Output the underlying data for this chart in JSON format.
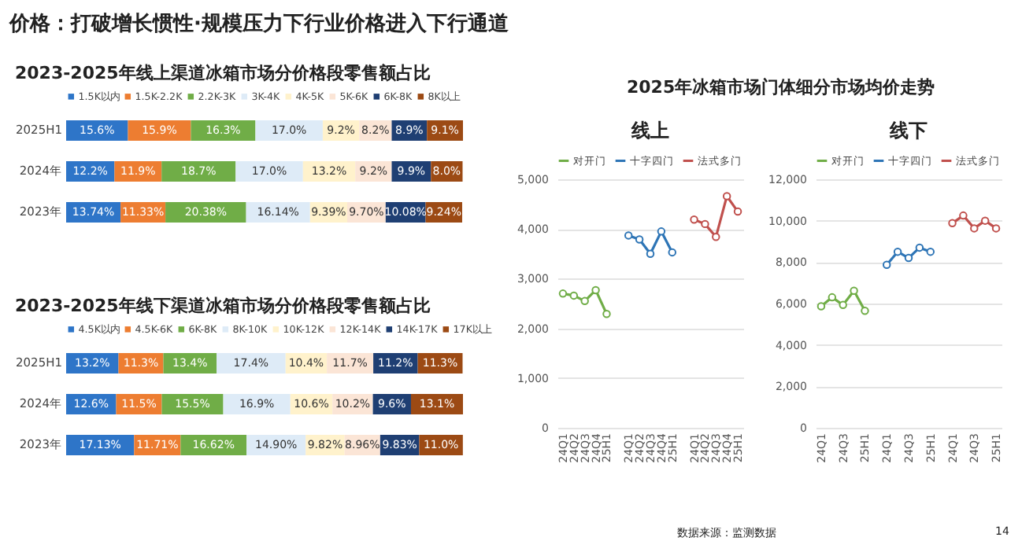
{
  "chart_data": [
    {
      "type": "bar",
      "orientation": "horizontal",
      "stacked": true,
      "title": "2023-2025年线上渠道冰箱市场分价格段零售额占比",
      "annotations": [
        "价格：打破增长惯性·规模压力下行业价格进入下行通道"
      ],
      "legend": "top",
      "categories": [
        "2025H1",
        "2024年",
        "2023年"
      ],
      "series": [
        {
          "name": "1.5K以内",
          "color": "#2e75c8",
          "values": [
            15.6,
            12.2,
            13.74
          ],
          "value_labels": [
            "15.6%",
            "12.2%",
            "13.74%"
          ]
        },
        {
          "name": "1.5K-2.2K",
          "color": "#ed7d31",
          "values": [
            15.9,
            11.9,
            11.33
          ],
          "value_labels": [
            "15.9%",
            "11.9%",
            "11.33%"
          ]
        },
        {
          "name": "2.2K-3K",
          "color": "#70ad47",
          "values": [
            16.3,
            18.7,
            20.38
          ],
          "value_labels": [
            "16.3%",
            "18.7%",
            "20.38%"
          ]
        },
        {
          "name": "3K-4K",
          "color": "#deebf7",
          "values": [
            17.0,
            17.0,
            16.14
          ],
          "value_labels": [
            "17.0%",
            "17.0%",
            "16.14%"
          ]
        },
        {
          "name": "4K-5K",
          "color": "#fff2cc",
          "values": [
            9.2,
            13.2,
            9.39
          ],
          "value_labels": [
            "9.2%",
            "13.2%",
            "9.39%"
          ]
        },
        {
          "name": "5K-6K",
          "color": "#fbe5d6",
          "values": [
            8.2,
            9.2,
            9.7
          ],
          "value_labels": [
            "8.2%",
            "9.2%",
            "9.70%"
          ]
        },
        {
          "name": "6K-8K",
          "color": "#1f3f73",
          "values": [
            8.9,
            9.9,
            10.08
          ],
          "value_labels": [
            "8.9%",
            "9.9%",
            "10.08%"
          ]
        },
        {
          "name": "8K以上",
          "color": "#9c4a14",
          "values": [
            9.1,
            8.0,
            9.24
          ],
          "value_labels": [
            "9.1%",
            "8.0%",
            "9.24%"
          ]
        }
      ]
    },
    {
      "type": "bar",
      "orientation": "horizontal",
      "stacked": true,
      "title": "2023-2025年线下渠道冰箱市场分价格段零售额占比",
      "legend": "top",
      "categories": [
        "2025H1",
        "2024年",
        "2023年"
      ],
      "series": [
        {
          "name": "4.5K以内",
          "color": "#2e75c8",
          "values": [
            13.2,
            12.6,
            17.13
          ],
          "value_labels": [
            "13.2%",
            "12.6%",
            "17.13%"
          ]
        },
        {
          "name": "4.5K-6K",
          "color": "#ed7d31",
          "values": [
            11.3,
            11.5,
            11.71
          ],
          "value_labels": [
            "11.3%",
            "11.5%",
            "11.71%"
          ]
        },
        {
          "name": "6K-8K",
          "color": "#70ad47",
          "values": [
            13.4,
            15.5,
            16.62
          ],
          "value_labels": [
            "13.4%",
            "15.5%",
            "16.62%"
          ]
        },
        {
          "name": "8K-10K",
          "color": "#deebf7",
          "values": [
            17.4,
            16.9,
            14.9
          ],
          "value_labels": [
            "17.4%",
            "16.9%",
            "14.90%"
          ]
        },
        {
          "name": "10K-12K",
          "color": "#fff2cc",
          "values": [
            10.4,
            10.6,
            9.82
          ],
          "value_labels": [
            "10.4%",
            "10.6%",
            "9.82%"
          ]
        },
        {
          "name": "12K-14K",
          "color": "#fbe5d6",
          "values": [
            11.7,
            10.2,
            8.96
          ],
          "value_labels": [
            "11.7%",
            "10.2%",
            "8.96%"
          ]
        },
        {
          "name": "14K-17K",
          "color": "#1f3f73",
          "values": [
            11.2,
            9.6,
            9.83
          ],
          "value_labels": [
            "11.2%",
            "9.6%",
            "9.83%"
          ]
        },
        {
          "name": "17K以上",
          "color": "#9c4a14",
          "values": [
            11.3,
            13.1,
            11.0
          ],
          "value_labels": [
            "11.3%",
            "13.1%",
            "11.0%"
          ]
        }
      ]
    },
    {
      "type": "line",
      "title": "线上",
      "annotations": [
        "2025年冰箱市场门体细分市场均价走势"
      ],
      "legend": "top left",
      "grid": "y",
      "marker": "circle",
      "line_style": "solid",
      "ylim": [
        0,
        5000
      ],
      "yticks": [
        {
          "value": 0,
          "label": "0"
        },
        {
          "value": 1000,
          "label": "1,000"
        },
        {
          "value": 2000,
          "label": "2,000"
        },
        {
          "value": 3000,
          "label": "3,000"
        },
        {
          "value": 4000,
          "label": "4,000"
        },
        {
          "value": 5000,
          "label": "5,000"
        }
      ],
      "categories": [
        "24Q1",
        "24Q2",
        "24Q3",
        "24Q4",
        "25H1",
        null,
        "24Q1",
        "24Q2",
        "24Q3",
        "24Q4",
        "25H1",
        null,
        "24Q1",
        "24Q2",
        "24Q3",
        "24Q4",
        "25H1"
      ],
      "series": [
        {
          "name": "对开门",
          "color": "#70ad47",
          "values": [
            2700,
            2660,
            2550,
            2770,
            2290,
            null,
            null,
            null,
            null,
            null,
            null,
            null,
            null,
            null,
            null,
            null,
            null
          ]
        },
        {
          "name": "十字四门",
          "color": "#2e75b6",
          "values": [
            null,
            null,
            null,
            null,
            null,
            null,
            3870,
            3790,
            3500,
            3950,
            3530,
            null,
            null,
            null,
            null,
            null,
            null
          ]
        },
        {
          "name": "法式多门",
          "color": "#c0504d",
          "values": [
            null,
            null,
            null,
            null,
            null,
            null,
            null,
            null,
            null,
            null,
            null,
            null,
            4190,
            4100,
            3840,
            4660,
            4350
          ]
        }
      ]
    },
    {
      "type": "line",
      "title": "线下",
      "annotations": [
        "数据来源：监测数据",
        "14"
      ],
      "legend": "top left",
      "grid": "y",
      "marker": "circle",
      "line_style": "solid",
      "ylim": [
        0,
        12000
      ],
      "yticks": [
        {
          "value": 0,
          "label": "0"
        },
        {
          "value": 2000,
          "label": "2,000"
        },
        {
          "value": 4000,
          "label": "4,000"
        },
        {
          "value": 6000,
          "label": "6,000"
        },
        {
          "value": 8000,
          "label": "8,000"
        },
        {
          "value": 10000,
          "label": "10,000"
        },
        {
          "value": 12000,
          "label": "12,000"
        }
      ],
      "categories": [
        "24Q1",
        null,
        "24Q3",
        null,
        "25H1",
        null,
        "24Q1",
        null,
        "24Q3",
        null,
        "25H1",
        null,
        "24Q1",
        null,
        "24Q3",
        null,
        "25H1"
      ],
      "series": [
        {
          "name": "对开门",
          "color": "#70ad47",
          "values": [
            5870,
            6300,
            5930,
            6620,
            5650,
            null,
            null,
            null,
            null,
            null,
            null,
            null,
            null,
            null,
            null,
            null,
            null
          ]
        },
        {
          "name": "十字四门",
          "color": "#2e75b6",
          "values": [
            null,
            null,
            null,
            null,
            null,
            null,
            7870,
            8500,
            8200,
            8700,
            8500,
            null,
            null,
            null,
            null,
            null,
            null
          ]
        },
        {
          "name": "法式多门",
          "color": "#c0504d",
          "values": [
            null,
            null,
            null,
            null,
            null,
            null,
            null,
            null,
            null,
            null,
            null,
            null,
            9880,
            10250,
            9630,
            10000,
            9630
          ]
        }
      ]
    }
  ]
}
